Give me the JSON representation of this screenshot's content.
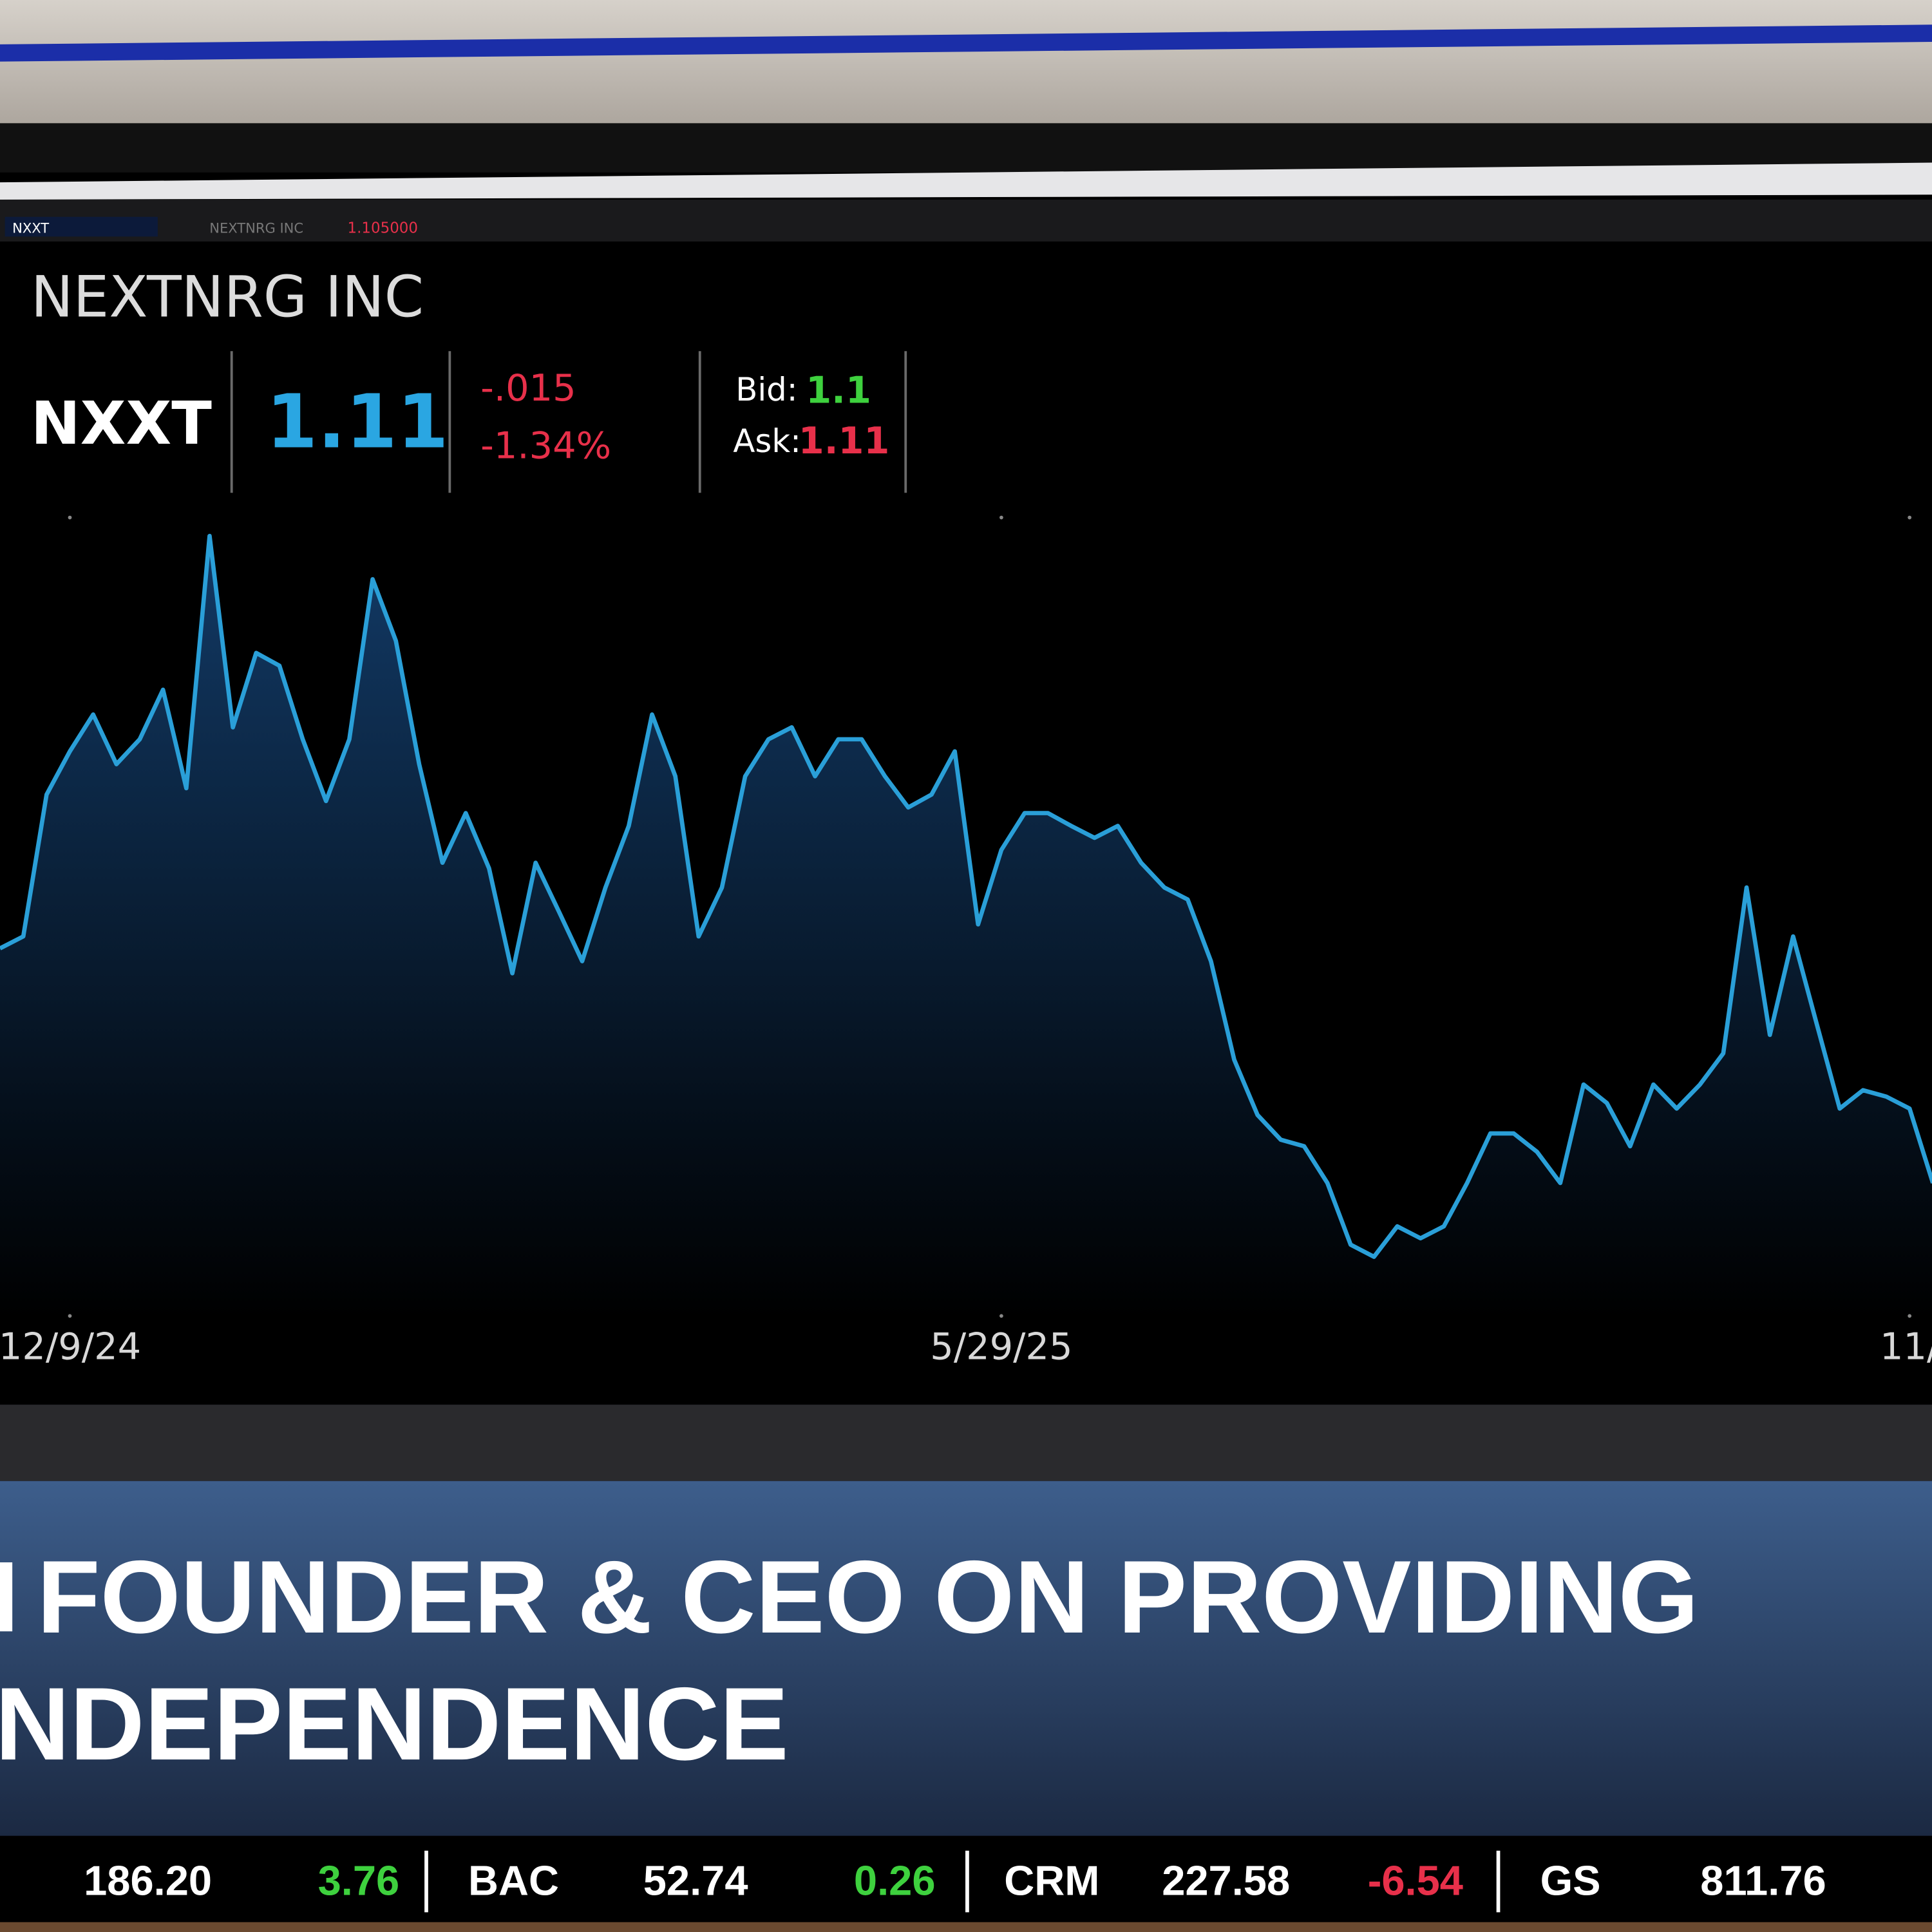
{
  "toolbar": {
    "symbol": "NXXT",
    "name": "NEXTNRG INC",
    "price": "1.105000"
  },
  "quote": {
    "company": "NEXTNRG INC",
    "symbol": "NXXT",
    "last": "1.11",
    "change": "-.015",
    "change_pct": "-1.34%",
    "bid_label": "Bid:",
    "bid": "1.1",
    "ask_label": "Ask:",
    "ask": "1.11"
  },
  "chart_data": {
    "type": "line",
    "color": "#2a9fd8",
    "categories": [
      null,
      null,
      null,
      "12/9/24",
      null,
      null,
      null,
      null,
      null,
      null,
      null,
      null,
      null,
      null,
      null,
      null,
      null,
      null,
      null,
      null,
      null,
      null,
      null,
      null,
      null,
      null,
      null,
      null,
      null,
      null,
      null,
      null,
      null,
      null,
      null,
      null,
      null,
      null,
      null,
      null,
      null,
      null,
      null,
      "5/29/25",
      null,
      null,
      null,
      null,
      null,
      null,
      null,
      null,
      null,
      null,
      null,
      null,
      null,
      null,
      null,
      null,
      null,
      null,
      null,
      null,
      null,
      null,
      null,
      null,
      null,
      null,
      null,
      null,
      null,
      null,
      null,
      null,
      null,
      null,
      null,
      null,
      null,
      null,
      "11/",
      null
    ],
    "values": [
      46.2,
      47.7,
      65.4,
      70.8,
      75.4,
      69.2,
      72.3,
      78.5,
      66.2,
      97.7,
      73.8,
      83.1,
      81.5,
      72.3,
      64.6,
      72.3,
      92.3,
      84.6,
      69.2,
      56.9,
      63.1,
      56.2,
      43.1,
      56.9,
      50.8,
      44.6,
      53.8,
      61.5,
      75.4,
      67.7,
      47.7,
      53.8,
      67.7,
      72.3,
      73.8,
      67.7,
      72.3,
      72.3,
      67.7,
      63.8,
      65.4,
      70.8,
      49.2,
      58.5,
      63.1,
      63.1,
      61.5,
      60.0,
      61.5,
      56.9,
      53.8,
      52.3,
      44.6,
      32.3,
      25.4,
      22.3,
      21.5,
      16.9,
      9.2,
      7.7,
      11.5,
      10.0,
      11.5,
      16.9,
      23.1,
      23.1,
      20.8,
      16.9,
      29.2,
      26.9,
      21.5,
      29.2,
      26.2,
      29.2,
      33.1,
      53.8,
      35.4,
      47.7,
      36.9,
      26.2,
      28.5,
      27.7,
      26.2,
      16.9
    ],
    "ylim": [
      0,
      100
    ],
    "grid": false,
    "area": true
  },
  "headline": {
    "lines": [
      "FOUNDER & CEO ON PROVIDING",
      "NDEPENDENCE"
    ]
  },
  "ticker": [
    {
      "price": "186.20",
      "change": "3.76"
    },
    {
      "symbol": "BAC",
      "price": "52.74",
      "change": "0.26"
    },
    {
      "symbol": "CRM",
      "price": "227.58",
      "change": "-6.54"
    },
    {
      "symbol": "GS",
      "price": "811.76"
    }
  ]
}
